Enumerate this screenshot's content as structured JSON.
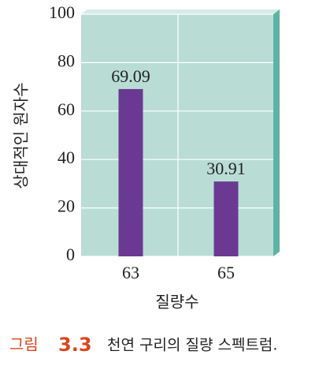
{
  "chart_data": {
    "type": "bar",
    "categories": [
      "63",
      "65"
    ],
    "values": [
      69.09,
      30.91
    ],
    "color": "#6a3a92",
    "ylim": [
      0,
      100
    ],
    "yticks": [
      0,
      20,
      40,
      60,
      80,
      100
    ],
    "grid": true,
    "ylabel": "상대적인 원자수",
    "xlabel": "질량수",
    "caption_label": "그림",
    "caption_number": "3.3",
    "caption_text": "천연 구리의 질량 스펙트럼."
  }
}
